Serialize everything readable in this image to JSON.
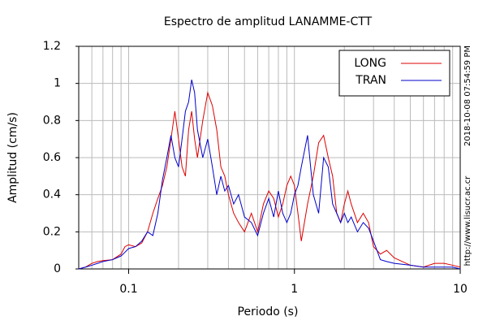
{
  "chart_data": {
    "type": "line",
    "title": "Espectro de amplitud LANAMME-CTT",
    "xlabel": "Periodo (s)",
    "ylabel": "Amplitud (cm/s)",
    "annotations": [
      "2018-10-08 07:54:59 PM",
      "http://www.lisucr.ac.cr"
    ],
    "xscale": "log",
    "minor_grid": true,
    "grid": true,
    "legend": "upper right",
    "xlim": [
      0.05,
      10
    ],
    "ylim": [
      0,
      1.2
    ],
    "xticks": [
      0.1,
      1,
      10
    ],
    "yticks": [
      0,
      0.2,
      0.4,
      0.6,
      0.8,
      1,
      1.2
    ],
    "x": [
      0.05,
      0.055,
      0.06,
      0.065,
      0.07,
      0.08,
      0.09,
      0.095,
      0.1,
      0.11,
      0.12,
      0.13,
      0.14,
      0.15,
      0.16,
      0.17,
      0.18,
      0.19,
      0.2,
      0.21,
      0.22,
      0.23,
      0.24,
      0.25,
      0.26,
      0.28,
      0.3,
      0.32,
      0.34,
      0.36,
      0.38,
      0.4,
      0.43,
      0.46,
      0.5,
      0.55,
      0.6,
      0.65,
      0.7,
      0.75,
      0.8,
      0.85,
      0.9,
      0.95,
      1.0,
      1.05,
      1.1,
      1.2,
      1.3,
      1.4,
      1.5,
      1.6,
      1.7,
      1.8,
      1.9,
      2.0,
      2.1,
      2.2,
      2.4,
      2.6,
      2.8,
      3.0,
      3.3,
      3.6,
      4.0,
      5.0,
      6.0,
      7.0,
      8.0,
      9.0,
      10
    ],
    "series": [
      {
        "name": "LONG",
        "color": "#dd0000",
        "values": [
          0.0,
          0.01,
          0.03,
          0.04,
          0.045,
          0.05,
          0.08,
          0.12,
          0.13,
          0.12,
          0.14,
          0.2,
          0.3,
          0.38,
          0.45,
          0.55,
          0.7,
          0.85,
          0.7,
          0.55,
          0.5,
          0.75,
          0.85,
          0.7,
          0.6,
          0.8,
          0.95,
          0.88,
          0.75,
          0.55,
          0.5,
          0.4,
          0.3,
          0.25,
          0.2,
          0.3,
          0.2,
          0.35,
          0.42,
          0.38,
          0.28,
          0.35,
          0.45,
          0.5,
          0.45,
          0.3,
          0.15,
          0.35,
          0.5,
          0.68,
          0.72,
          0.6,
          0.5,
          0.3,
          0.25,
          0.35,
          0.42,
          0.35,
          0.25,
          0.3,
          0.25,
          0.12,
          0.08,
          0.1,
          0.06,
          0.02,
          0.01,
          0.03,
          0.03,
          0.02,
          0.01
        ]
      },
      {
        "name": "TRAN",
        "color": "#0000cc",
        "values": [
          0.0,
          0.01,
          0.02,
          0.03,
          0.04,
          0.05,
          0.07,
          0.09,
          0.11,
          0.12,
          0.15,
          0.2,
          0.18,
          0.3,
          0.48,
          0.6,
          0.72,
          0.6,
          0.55,
          0.7,
          0.85,
          0.9,
          1.02,
          0.95,
          0.75,
          0.6,
          0.7,
          0.55,
          0.4,
          0.5,
          0.42,
          0.45,
          0.35,
          0.4,
          0.28,
          0.25,
          0.18,
          0.3,
          0.38,
          0.28,
          0.42,
          0.3,
          0.25,
          0.3,
          0.4,
          0.45,
          0.55,
          0.72,
          0.4,
          0.3,
          0.6,
          0.55,
          0.35,
          0.3,
          0.25,
          0.3,
          0.25,
          0.28,
          0.2,
          0.25,
          0.22,
          0.15,
          0.05,
          0.04,
          0.03,
          0.02,
          0.01,
          0.01,
          0.01,
          0.01,
          0.0
        ]
      }
    ]
  }
}
